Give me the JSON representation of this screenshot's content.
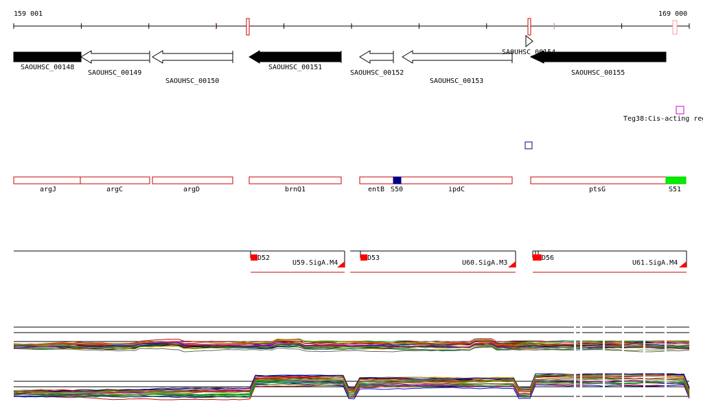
{
  "ruler": {
    "start_label": "159 001",
    "end_label": "169 000",
    "start": 159001,
    "end": 169000
  },
  "genes": [
    {
      "label": "SAOUHSC_00148",
      "strand": "+",
      "filled": true
    },
    {
      "label": "SAOUHSC_00149",
      "strand": "-",
      "filled": false
    },
    {
      "label": "SAOUHSC_00150",
      "strand": "-",
      "filled": false
    },
    {
      "label": "SAOUHSC_00151",
      "strand": "-",
      "filled": true
    },
    {
      "label": "SAOUHSC_00152",
      "strand": "-",
      "filled": false
    },
    {
      "label": "SAOUHSC_00153",
      "strand": "-",
      "filled": false
    },
    {
      "label": "SAOUHSC_00154",
      "strand": "+",
      "filled": false
    },
    {
      "label": "SAOUHSC_00155",
      "strand": "-",
      "filled": true
    }
  ],
  "regulatory": {
    "label": "Teg38:Cis-acting reg",
    "color": "#cc00cc"
  },
  "operon_genes": [
    "argJ",
    "argC",
    "argD",
    "brnQ1",
    "entB",
    "ipdC",
    "ptsG"
  ],
  "sites": [
    {
      "label": "S50",
      "color": "#000080"
    },
    {
      "label": "S51",
      "color": "#00ee00"
    }
  ],
  "promoters": [
    {
      "site": "D52",
      "unit": "U59.SigA.M4"
    },
    {
      "site": "D53",
      "unit": "U60.SigA.M3"
    },
    {
      "site": "D56",
      "unit": "U61.SigA.M4"
    }
  ],
  "colors": {
    "feature_outline": "#cc0000",
    "promoter": "#ff0000",
    "navy_square": "#000080"
  }
}
